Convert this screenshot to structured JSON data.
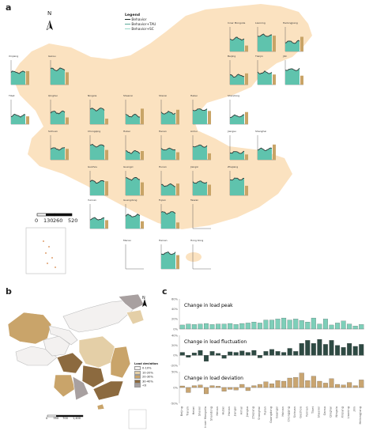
{
  "panel_labels": {
    "a": "a",
    "b": "b",
    "c": "c"
  },
  "legend": {
    "title": "Legend",
    "items": [
      {
        "label": "Behavior",
        "color": "#1e2a26"
      },
      {
        "label": "Behavior+TAU",
        "color": "#5aa899"
      },
      {
        "label": "Behavior+SC",
        "color": "#9bd6ca"
      }
    ]
  },
  "north_label": "N",
  "scale_bar": {
    "labels": [
      "0",
      "130",
      "260",
      "520"
    ]
  },
  "provinces": [
    "Xinjiang",
    "Gansu",
    "Inner Mongolia",
    "Liaoning",
    "Heilongjiang",
    "Beijing",
    "Tianjin",
    "Jilin",
    "Tibet",
    "Qinghai",
    "Ningxia",
    "Shaanxi",
    "Shanxi",
    "Hebei",
    "Shandong",
    "Sichuan",
    "Chongqing",
    "Hubei",
    "Henan",
    "Anhui",
    "Jiangsu",
    "Shanghai",
    "Guizhou",
    "Guangxi",
    "Hunan",
    "Jiangxi",
    "Zhejiang",
    "Yunnan",
    "Guangdong",
    "Fujian",
    "Taiwan",
    "Macau",
    "Hainan",
    "Hong Kong"
  ],
  "colors": {
    "land": "#fbe2c0",
    "teal": "#5fc3ad",
    "dark": "#2d3b38",
    "tan": "#c8a467",
    "axis": "#444444",
    "map_dark": "#8c6a3f",
    "map_mid": "#c9a46a",
    "map_light": "#e4cfa7",
    "map_grey": "#a8a0a0",
    "map_none": "#f3f1f0"
  },
  "map_b": {
    "north_label": "N",
    "legend_title": "Load deviation",
    "legend_items": [
      {
        "label": "0-10%",
        "color": "#f3f1f0"
      },
      {
        "label": "10-20%",
        "color": "#e4cfa7"
      },
      {
        "label": "20-30%",
        "color": "#c9a46a"
      },
      {
        "label": "30-40%",
        "color": "#8c6a3f"
      },
      {
        "label": "<0",
        "color": "#a8a0a0"
      }
    ],
    "scale_labels": [
      "0",
      "350",
      "700",
      "1,400"
    ]
  },
  "chart_data": [
    {
      "type": "bar",
      "title": "Change in load peak",
      "categories": [
        "Beijing",
        "Tianjin",
        "Hebei",
        "Shanxi",
        "Inner Mongolia",
        "Shandong",
        "Henan",
        "Hubei",
        "Hunan",
        "Jiangxi",
        "Anhui",
        "Jiangsu",
        "Zhejiang",
        "Shanghai",
        "Fujian",
        "Guangdong",
        "Guangxi",
        "Hainan",
        "Chongqing",
        "Sichuan",
        "Guizhou",
        "Yunnan",
        "Tibet",
        "Shaanxi",
        "Gansu",
        "Qinghai",
        "Ningxia",
        "Xinjiang",
        "Liaoning",
        "Jilin",
        "Heilongjiang"
      ],
      "values": [
        8,
        10,
        9,
        10,
        11,
        9,
        10,
        10,
        11,
        9,
        11,
        12,
        14,
        12,
        18,
        18,
        20,
        22,
        18,
        20,
        17,
        14,
        22,
        10,
        20,
        8,
        12,
        16,
        10,
        6,
        9
      ],
      "yticks": [
        "60%",
        "40%",
        "20%",
        "0%"
      ],
      "ylim": [
        0,
        60
      ],
      "color": "#7ecfb9"
    },
    {
      "type": "bar",
      "title": "Change in load fluctuation",
      "categories": [
        "Beijing",
        "Tianjin",
        "Hebei",
        "Shanxi",
        "Inner Mongolia",
        "Shandong",
        "Henan",
        "Hubei",
        "Hunan",
        "Jiangxi",
        "Anhui",
        "Jiangsu",
        "Zhejiang",
        "Shanghai",
        "Fujian",
        "Guangdong",
        "Guangxi",
        "Hainan",
        "Chongqing",
        "Sichuan",
        "Guizhou",
        "Yunnan",
        "Tibet",
        "Shaanxi",
        "Gansu",
        "Qinghai",
        "Ningxia",
        "Xinjiang",
        "Liaoning",
        "Jilin",
        "Heilongjiang"
      ],
      "values": [
        6,
        -4,
        5,
        10,
        -12,
        8,
        4,
        -6,
        7,
        6,
        9,
        6,
        10,
        -5,
        8,
        12,
        8,
        6,
        14,
        8,
        24,
        30,
        24,
        32,
        22,
        30,
        20,
        16,
        24,
        18,
        22
      ],
      "yticks": [
        "40%",
        "20%",
        "0%",
        "-20%"
      ],
      "ylim": [
        -20,
        40
      ],
      "color": "#2e4a43"
    },
    {
      "type": "bar",
      "title": "Change in load deviation",
      "categories": [
        "Beijing",
        "Tianjin",
        "Hebei",
        "Shanxi",
        "Inner Mongolia",
        "Shandong",
        "Henan",
        "Hubei",
        "Hunan",
        "Jiangxi",
        "Anhui",
        "Jiangsu",
        "Zhejiang",
        "Shanghai",
        "Fujian",
        "Guangdong",
        "Guangxi",
        "Hainan",
        "Chongqing",
        "Sichuan",
        "Guizhou",
        "Yunnan",
        "Tibet",
        "Shaanxi",
        "Gansu",
        "Qinghai",
        "Ningxia",
        "Xinjiang",
        "Liaoning",
        "Jilin",
        "Heilongjiang"
      ],
      "values": [
        5,
        -16,
        6,
        8,
        -20,
        6,
        4,
        -12,
        -6,
        -8,
        10,
        -10,
        6,
        10,
        18,
        12,
        22,
        20,
        30,
        32,
        46,
        22,
        36,
        20,
        14,
        28,
        10,
        8,
        16,
        6,
        24
      ],
      "yticks": [
        "50%",
        "0%",
        "-50%"
      ],
      "ylim": [
        -50,
        50
      ],
      "color": "#c9a571"
    }
  ]
}
